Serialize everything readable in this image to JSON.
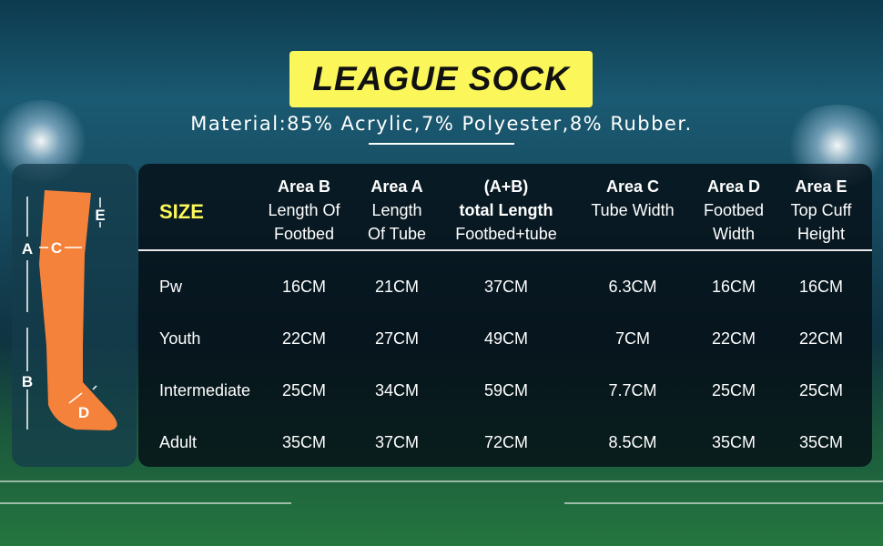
{
  "title": "LEAGUE SOCK",
  "material": "Material:85% Acrylic,7% Polyester,8% Rubber.",
  "diagram_labels": {
    "a": "A",
    "b": "B",
    "c": "C",
    "d": "D",
    "e": "E"
  },
  "colors": {
    "accent_yellow": "#fbf65a",
    "sock_orange": "#f5823a"
  },
  "table": {
    "size_header": "SIZE",
    "columns": [
      {
        "key": "Area B",
        "lines": [
          "Length Of",
          "Footbed"
        ]
      },
      {
        "key": "Area A",
        "lines": [
          "Length",
          "Of Tube"
        ]
      },
      {
        "key": "(A+B)",
        "key2": "total Length",
        "lines": [
          "Footbed+tube"
        ]
      },
      {
        "key": "Area C",
        "lines": [
          "Tube Width"
        ]
      },
      {
        "key": "Area D",
        "lines": [
          "Footbed",
          "Width"
        ]
      },
      {
        "key": "Area E",
        "lines": [
          "Top Cuff",
          "Height"
        ]
      }
    ],
    "rows": [
      {
        "size": "Pw",
        "values": [
          "16CM",
          "21CM",
          "37CM",
          "6.3CM",
          "16CM",
          "16CM"
        ]
      },
      {
        "size": "Youth",
        "values": [
          "22CM",
          "27CM",
          "49CM",
          "7CM",
          "22CM",
          "22CM"
        ]
      },
      {
        "size": "Intermediate",
        "values": [
          "25CM",
          "34CM",
          "59CM",
          "7.7CM",
          "25CM",
          "25CM"
        ]
      },
      {
        "size": "Adult",
        "values": [
          "35CM",
          "37CM",
          "72CM",
          "8.5CM",
          "35CM",
          "35CM"
        ]
      }
    ]
  }
}
